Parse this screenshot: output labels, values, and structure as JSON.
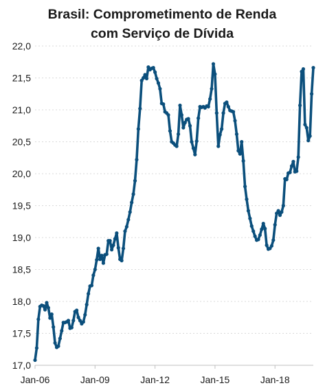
{
  "chart_data": {
    "type": "line",
    "title_lines": [
      "Brasil: Comprometimento de Renda",
      "com Serviço de Dívida"
    ],
    "xlabel": "",
    "ylabel": "",
    "x_tick_labels": [
      "Jan-06",
      "Jan-09",
      "Jan-12",
      "Jan-15",
      "Jan-18"
    ],
    "x_tick_months": [
      0,
      36,
      72,
      108,
      144
    ],
    "y_tick_labels": [
      "17,0",
      "17,5",
      "18,0",
      "18,5",
      "19,0",
      "19,5",
      "20,0",
      "20,5",
      "21,0",
      "21,5",
      "22,0"
    ],
    "ylim": [
      17.0,
      22.0
    ],
    "grid": true,
    "color": "#0b4f7c",
    "series": [
      {
        "values": [
          17.08,
          17.27,
          17.72,
          17.92,
          17.94,
          17.93,
          17.87,
          17.98,
          17.9,
          17.74,
          17.8,
          17.6,
          17.35,
          17.28,
          17.3,
          17.42,
          17.54,
          17.67,
          17.67,
          17.68,
          17.7,
          17.58,
          17.59,
          17.7,
          17.84,
          17.86,
          17.75,
          17.7,
          17.65,
          17.68,
          17.79,
          17.95,
          18.12,
          18.24,
          18.25,
          18.41,
          18.5,
          18.65,
          18.83,
          18.66,
          18.72,
          18.6,
          18.73,
          18.74,
          18.95,
          18.95,
          18.81,
          18.88,
          18.98,
          19.07,
          18.84,
          18.66,
          18.64,
          18.83,
          19.1,
          19.17,
          19.28,
          19.4,
          19.55,
          19.68,
          19.89,
          20.22,
          20.7,
          21.02,
          21.46,
          21.5,
          21.55,
          21.49,
          21.67,
          21.63,
          21.65,
          21.66,
          21.59,
          21.49,
          21.42,
          21.33,
          21.1,
          21.09,
          20.97,
          20.95,
          20.92,
          20.67,
          20.5,
          20.48,
          20.45,
          20.43,
          20.62,
          21.07,
          20.92,
          20.72,
          20.8,
          20.85,
          20.86,
          20.75,
          20.5,
          20.4,
          20.3,
          20.51,
          20.87,
          21.05,
          21.04,
          21.05,
          21.03,
          21.06,
          21.05,
          21.17,
          21.33,
          21.72,
          21.56,
          20.95,
          20.43,
          20.61,
          20.7,
          20.95,
          21.1,
          21.12,
          21.05,
          20.99,
          20.98,
          20.97,
          20.83,
          20.62,
          20.36,
          20.31,
          20.5,
          20.2,
          19.8,
          19.6,
          19.42,
          19.3,
          19.18,
          19.1,
          19.02,
          18.96,
          18.97,
          19.04,
          19.13,
          19.22,
          19.14,
          18.88,
          18.82,
          18.83,
          18.87,
          18.96,
          19.2,
          19.38,
          19.42,
          19.35,
          19.4,
          19.5,
          19.92,
          19.91,
          20.01,
          20.02,
          20.12,
          20.19,
          20.03,
          20.04,
          20.26,
          21.07,
          21.6,
          21.64,
          20.77,
          20.72,
          20.52,
          20.59,
          21.25,
          21.66
        ]
      }
    ]
  }
}
